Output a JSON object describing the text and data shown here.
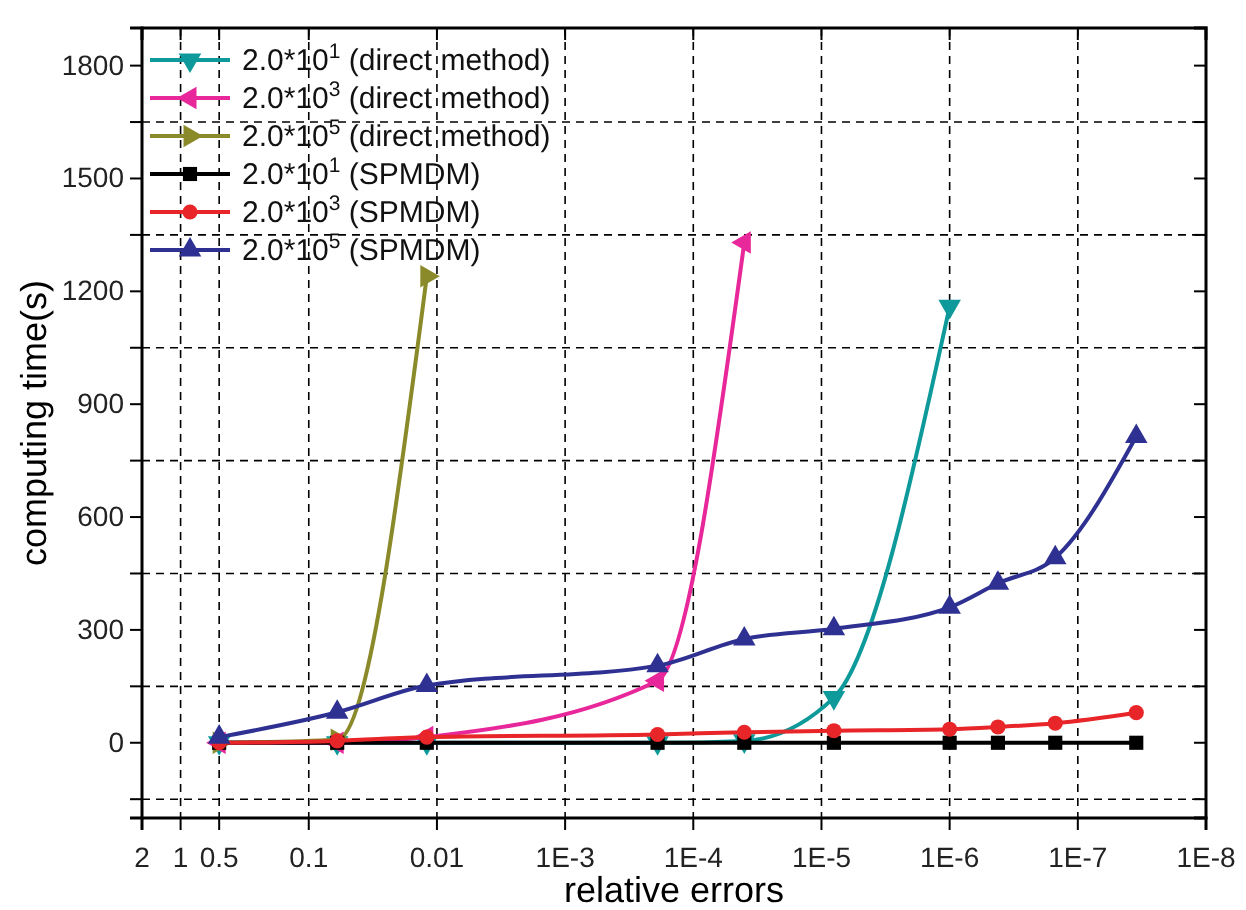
{
  "chart_data": {
    "type": "line",
    "xlabel": "relative errors",
    "ylabel": "computing time(s)",
    "log": "x",
    "xlim": [
      2,
      1e-08
    ],
    "xticks": [
      2,
      1,
      0.5,
      0.1,
      0.01,
      {
        "value": 0.001,
        "label": "1E-3"
      },
      {
        "value": 0.0001,
        "label": "1E-4"
      },
      {
        "value": 1e-05,
        "label": "1E-5"
      },
      {
        "value": 1e-06,
        "label": "1E-6"
      },
      {
        "value": 1e-07,
        "label": "1E-7"
      },
      {
        "value": 1e-08,
        "label": "1E-8"
      }
    ],
    "ylim": [
      -200,
      1900
    ],
    "yticks": [
      {
        "value": -150,
        "label": null
      },
      0,
      {
        "value": 150,
        "label": null
      },
      300,
      {
        "value": 450,
        "label": null
      },
      600,
      {
        "value": 750,
        "label": null
      },
      900,
      {
        "value": 1050,
        "label": null
      },
      1200,
      {
        "value": 1350,
        "label": null
      },
      1500,
      {
        "value": 1650,
        "label": null
      },
      1800
    ],
    "grid": true,
    "legend": "top left",
    "line_style": "solid",
    "series": [
      {
        "name": "2.0*10$^{1}$ (direct method)",
        "color": "#0e9a9a",
        "marker": "triangle-down",
        "x": [
          0.5,
          0.06,
          0.012,
          0.00019,
          4e-05,
          8e-06,
          1e-06
        ],
        "values": [
          0,
          0,
          0,
          0,
          5,
          120,
          1160
        ]
      },
      {
        "name": "2.0*10$^{3}$ (direct method)",
        "color": "#e8279a",
        "marker": "triangle-left",
        "x": [
          0.5,
          0.06,
          0.012,
          0.00019,
          4e-05
        ],
        "values": [
          0,
          0,
          15,
          165,
          1330
        ]
      },
      {
        "name": "2.0*10$^{5}$ (direct method)",
        "color": "#8a8a2a",
        "marker": "triangle-right",
        "x": [
          0.5,
          0.06,
          0.012
        ],
        "values": [
          0,
          8,
          1240
        ]
      },
      {
        "name": "2.0*10$^{1}$ (SPMDM)",
        "color": "#000000",
        "marker": "square",
        "x": [
          0.5,
          0.06,
          0.012,
          0.00019,
          4e-05,
          8e-06,
          1e-06,
          4.2e-07,
          1.5e-07,
          3.5e-08
        ],
        "values": [
          0,
          0,
          0,
          0,
          0,
          0,
          0,
          0,
          0,
          0
        ]
      },
      {
        "name": "2.0*10$^{3}$ (SPMDM)",
        "color": "#e8262a",
        "marker": "circle",
        "x": [
          0.5,
          0.06,
          0.012,
          0.00019,
          4e-05,
          8e-06,
          1e-06,
          4.2e-07,
          1.5e-07,
          3.5e-08
        ],
        "values": [
          0,
          5,
          15,
          22,
          28,
          32,
          36,
          42,
          52,
          80
        ]
      },
      {
        "name": "2.0*10$^{5}$ (SPMDM)",
        "color": "#2e3192",
        "marker": "triangle",
        "x": [
          0.5,
          0.06,
          0.012,
          0.00019,
          4e-05,
          8e-06,
          1e-06,
          4.2e-07,
          1.5e-07,
          3.5e-08
        ],
        "values": [
          15,
          81,
          152,
          205,
          276,
          303,
          360,
          424,
          492,
          814
        ]
      }
    ]
  }
}
